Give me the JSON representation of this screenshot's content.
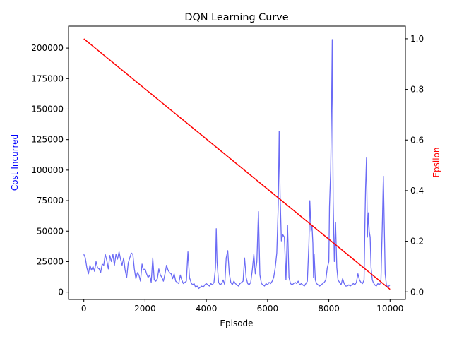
{
  "chart_data": {
    "type": "line",
    "title": "DQN Learning Curve",
    "xlabel": "Episode",
    "ylabel_left": "Cost Incurred",
    "ylabel_right": "Epsilon",
    "xlim": [
      -500,
      10500
    ],
    "ylim_left": [
      -6000,
      218000
    ],
    "ylim_right": [
      -0.03,
      1.05
    ],
    "xticks": [
      0,
      2000,
      4000,
      6000,
      8000,
      10000
    ],
    "yticks_left": [
      0,
      25000,
      50000,
      75000,
      100000,
      125000,
      150000,
      175000,
      200000
    ],
    "yticks_right": [
      0.0,
      0.2,
      0.4,
      0.6,
      0.8,
      1.0
    ],
    "grid": false,
    "colors": {
      "cost": "#6b6bf5",
      "epsilon": "#ff0000",
      "left_label": "#0000ff",
      "right_label": "#ff0000"
    },
    "series": [
      {
        "axis": "left",
        "values": [
          [
            0,
            31000
          ],
          [
            50,
            28000
          ],
          [
            100,
            20000
          ],
          [
            150,
            15000
          ],
          [
            200,
            22000
          ],
          [
            250,
            18000
          ],
          [
            300,
            21000
          ],
          [
            350,
            17000
          ],
          [
            400,
            25000
          ],
          [
            450,
            20000
          ],
          [
            500,
            19000
          ],
          [
            550,
            16000
          ],
          [
            600,
            23000
          ],
          [
            650,
            22000
          ],
          [
            700,
            31000
          ],
          [
            750,
            26000
          ],
          [
            800,
            19000
          ],
          [
            850,
            30000
          ],
          [
            900,
            25000
          ],
          [
            950,
            31000
          ],
          [
            1000,
            22000
          ],
          [
            1050,
            31000
          ],
          [
            1100,
            27000
          ],
          [
            1150,
            33000
          ],
          [
            1200,
            27000
          ],
          [
            1250,
            22000
          ],
          [
            1300,
            28000
          ],
          [
            1350,
            18000
          ],
          [
            1400,
            12000
          ],
          [
            1450,
            24000
          ],
          [
            1500,
            28000
          ],
          [
            1550,
            32000
          ],
          [
            1600,
            31000
          ],
          [
            1650,
            19000
          ],
          [
            1700,
            11000
          ],
          [
            1750,
            16000
          ],
          [
            1800,
            14000
          ],
          [
            1850,
            9000
          ],
          [
            1900,
            23000
          ],
          [
            1950,
            18000
          ],
          [
            2000,
            19000
          ],
          [
            2050,
            15000
          ],
          [
            2100,
            12000
          ],
          [
            2150,
            14000
          ],
          [
            2200,
            8000
          ],
          [
            2250,
            28000
          ],
          [
            2300,
            10000
          ],
          [
            2350,
            9000
          ],
          [
            2400,
            11000
          ],
          [
            2450,
            19000
          ],
          [
            2500,
            14000
          ],
          [
            2550,
            12000
          ],
          [
            2600,
            9000
          ],
          [
            2650,
            15000
          ],
          [
            2700,
            22000
          ],
          [
            2750,
            18000
          ],
          [
            2800,
            16000
          ],
          [
            2850,
            15000
          ],
          [
            2900,
            11000
          ],
          [
            2950,
            15000
          ],
          [
            3000,
            9000
          ],
          [
            3050,
            8000
          ],
          [
            3100,
            7000
          ],
          [
            3150,
            14000
          ],
          [
            3200,
            10000
          ],
          [
            3250,
            7000
          ],
          [
            3300,
            8000
          ],
          [
            3350,
            9000
          ],
          [
            3400,
            33000
          ],
          [
            3450,
            12000
          ],
          [
            3500,
            8000
          ],
          [
            3550,
            6000
          ],
          [
            3600,
            7000
          ],
          [
            3650,
            4000
          ],
          [
            3700,
            5000
          ],
          [
            3750,
            3000
          ],
          [
            3800,
            4000
          ],
          [
            3850,
            5000
          ],
          [
            3900,
            4000
          ],
          [
            3950,
            6000
          ],
          [
            4000,
            7000
          ],
          [
            4050,
            6000
          ],
          [
            4100,
            5000
          ],
          [
            4150,
            7000
          ],
          [
            4200,
            6000
          ],
          [
            4250,
            8000
          ],
          [
            4300,
            20000
          ],
          [
            4325,
            52000
          ],
          [
            4350,
            25000
          ],
          [
            4400,
            8000
          ],
          [
            4450,
            6000
          ],
          [
            4500,
            7000
          ],
          [
            4550,
            10000
          ],
          [
            4600,
            6000
          ],
          [
            4650,
            28000
          ],
          [
            4700,
            34000
          ],
          [
            4750,
            15000
          ],
          [
            4800,
            8000
          ],
          [
            4850,
            6000
          ],
          [
            4900,
            9000
          ],
          [
            4950,
            7000
          ],
          [
            5000,
            6000
          ],
          [
            5050,
            5000
          ],
          [
            5100,
            7000
          ],
          [
            5150,
            8000
          ],
          [
            5200,
            9000
          ],
          [
            5250,
            28000
          ],
          [
            5300,
            12000
          ],
          [
            5350,
            7000
          ],
          [
            5400,
            6000
          ],
          [
            5450,
            8000
          ],
          [
            5500,
            18000
          ],
          [
            5550,
            31000
          ],
          [
            5600,
            15000
          ],
          [
            5650,
            25000
          ],
          [
            5700,
            66000
          ],
          [
            5750,
            14000
          ],
          [
            5800,
            7000
          ],
          [
            5850,
            6000
          ],
          [
            5900,
            5000
          ],
          [
            5950,
            7000
          ],
          [
            6000,
            6000
          ],
          [
            6050,
            8000
          ],
          [
            6100,
            7000
          ],
          [
            6150,
            9000
          ],
          [
            6200,
            12000
          ],
          [
            6250,
            20000
          ],
          [
            6300,
            32000
          ],
          [
            6350,
            72000
          ],
          [
            6380,
            132000
          ],
          [
            6410,
            80000
          ],
          [
            6450,
            42000
          ],
          [
            6500,
            47000
          ],
          [
            6550,
            45000
          ],
          [
            6600,
            10000
          ],
          [
            6650,
            55000
          ],
          [
            6700,
            12000
          ],
          [
            6750,
            7000
          ],
          [
            6800,
            6000
          ],
          [
            6850,
            7000
          ],
          [
            6900,
            8000
          ],
          [
            6950,
            7000
          ],
          [
            7000,
            9000
          ],
          [
            7050,
            6000
          ],
          [
            7100,
            7000
          ],
          [
            7150,
            6000
          ],
          [
            7200,
            5000
          ],
          [
            7250,
            7000
          ],
          [
            7300,
            9000
          ],
          [
            7350,
            40000
          ],
          [
            7380,
            75000
          ],
          [
            7420,
            50000
          ],
          [
            7450,
            55000
          ],
          [
            7480,
            40000
          ],
          [
            7500,
            12000
          ],
          [
            7520,
            31000
          ],
          [
            7560,
            10000
          ],
          [
            7600,
            7000
          ],
          [
            7650,
            6000
          ],
          [
            7700,
            5000
          ],
          [
            7750,
            6000
          ],
          [
            7800,
            7000
          ],
          [
            7850,
            8000
          ],
          [
            7900,
            10000
          ],
          [
            7950,
            20000
          ],
          [
            8000,
            25000
          ],
          [
            8020,
            70000
          ],
          [
            8060,
            100000
          ],
          [
            8090,
            155000
          ],
          [
            8110,
            207000
          ],
          [
            8140,
            75000
          ],
          [
            8180,
            25000
          ],
          [
            8220,
            57000
          ],
          [
            8260,
            20000
          ],
          [
            8300,
            10000
          ],
          [
            8350,
            8000
          ],
          [
            8400,
            6000
          ],
          [
            8450,
            11000
          ],
          [
            8500,
            7000
          ],
          [
            8550,
            5000
          ],
          [
            8600,
            5000
          ],
          [
            8650,
            6000
          ],
          [
            8700,
            5000
          ],
          [
            8750,
            6000
          ],
          [
            8800,
            7000
          ],
          [
            8850,
            6000
          ],
          [
            8900,
            8000
          ],
          [
            8950,
            15000
          ],
          [
            9000,
            10000
          ],
          [
            9050,
            8000
          ],
          [
            9100,
            7000
          ],
          [
            9150,
            10000
          ],
          [
            9180,
            60000
          ],
          [
            9200,
            85000
          ],
          [
            9230,
            110000
          ],
          [
            9260,
            45000
          ],
          [
            9290,
            65000
          ],
          [
            9320,
            50000
          ],
          [
            9350,
            45000
          ],
          [
            9380,
            20000
          ],
          [
            9420,
            10000
          ],
          [
            9450,
            8000
          ],
          [
            9500,
            6000
          ],
          [
            9550,
            5000
          ],
          [
            9600,
            7000
          ],
          [
            9650,
            6000
          ],
          [
            9700,
            8000
          ],
          [
            9750,
            60000
          ],
          [
            9780,
            95000
          ],
          [
            9810,
            55000
          ],
          [
            9840,
            15000
          ],
          [
            9880,
            6000
          ],
          [
            9920,
            4000
          ],
          [
            9960,
            5000
          ],
          [
            10000,
            6000
          ]
        ]
      },
      {
        "axis": "right",
        "values": [
          [
            0,
            1.0
          ],
          [
            10000,
            0.01
          ]
        ]
      }
    ]
  }
}
